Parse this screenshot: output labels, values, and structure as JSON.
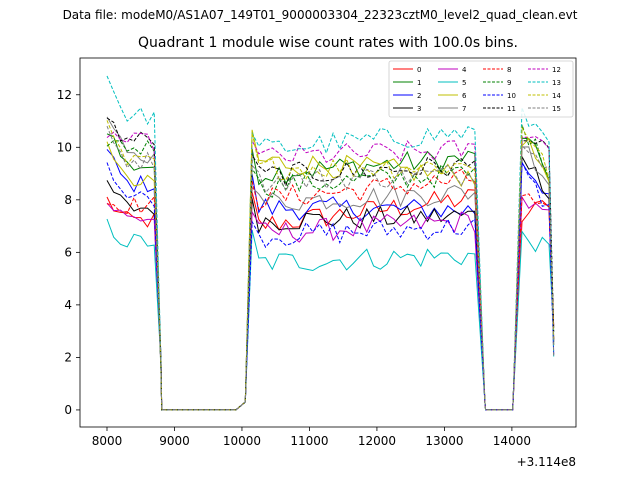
{
  "figure": {
    "suptitle": "Data file: modeM0/AS1A07_149T01_9000003304_22323cztM0_level2_quad_clean.evt",
    "title": "Quadrant 1 module wise count rates with 100.0s bins."
  },
  "chart_data": {
    "type": "line",
    "title": "Quadrant 1 module wise count rates with 100.0s bins.",
    "x_offset_label": "+3.114e8",
    "xlim": [
      7600,
      14950
    ],
    "ylim": [
      -0.65,
      13.4
    ],
    "xticks": [
      8000,
      9000,
      10000,
      11000,
      12000,
      13000,
      14000
    ],
    "yticks": [
      0,
      2,
      4,
      6,
      8,
      10,
      12
    ],
    "grid": false,
    "legend": {
      "placement": "upper-right",
      "columns": 4
    },
    "series": [
      {
        "name": "0",
        "color": "#ff0000",
        "dash": "solid",
        "base": [
          8.0,
          7.2,
          7.0,
          8.1
        ],
        "seg3": [
          7.3,
          8.0
        ]
      },
      {
        "name": "1",
        "color": "#008000",
        "dash": "solid",
        "base": [
          10.8,
          9.3,
          9.0,
          9.6
        ],
        "seg3": [
          10.5,
          9.0
        ]
      },
      {
        "name": "2",
        "color": "#0000ff",
        "dash": "solid",
        "base": [
          9.8,
          8.6,
          7.7,
          7.6
        ],
        "seg3": [
          9.5,
          8.2
        ]
      },
      {
        "name": "3",
        "color": "#000000",
        "dash": "solid",
        "base": [
          8.6,
          7.7,
          7.2,
          7.4
        ],
        "seg3": [
          9.8,
          8.3
        ]
      },
      {
        "name": "4",
        "color": "#bf00bf",
        "dash": "solid",
        "base": [
          7.9,
          7.3,
          6.7,
          7.2
        ],
        "seg3": [
          8.0,
          7.3
        ]
      },
      {
        "name": "5",
        "color": "#00bfbf",
        "dash": "solid",
        "base": [
          7.0,
          6.4,
          5.6,
          5.9
        ],
        "seg3": [
          6.6,
          6.1
        ]
      },
      {
        "name": "6",
        "color": "#bfbf00",
        "dash": "solid",
        "base": [
          10.4,
          8.6,
          9.5,
          8.9
        ],
        "seg3": [
          10.3,
          9.0
        ]
      },
      {
        "name": "7",
        "color": "#808080",
        "dash": "solid",
        "base": [
          11.2,
          9.6,
          7.9,
          8.3
        ],
        "seg3": [
          10.2,
          8.7
        ]
      },
      {
        "name": "8",
        "color": "#ff0000",
        "dash": "dashed",
        "base": [
          7.9,
          7.8,
          8.0,
          8.8
        ],
        "seg3": [
          8.2,
          7.4
        ]
      },
      {
        "name": "9",
        "color": "#008000",
        "dash": "dashed",
        "base": [
          10.3,
          10.0,
          8.5,
          9.0
        ],
        "seg3": [
          10.8,
          9.2
        ]
      },
      {
        "name": "10",
        "color": "#0000ff",
        "dash": "dashed",
        "base": [
          9.5,
          8.1,
          6.6,
          7.0
        ],
        "seg3": [
          9.2,
          7.6
        ]
      },
      {
        "name": "11",
        "color": "#000000",
        "dash": "dashed",
        "base": [
          11.0,
          10.3,
          8.9,
          9.3
        ],
        "seg3": [
          10.6,
          9.7
        ]
      },
      {
        "name": "12",
        "color": "#bf00bf",
        "dash": "dashed",
        "base": [
          10.6,
          10.2,
          9.6,
          9.9
        ],
        "seg3": [
          10.7,
          10.0
        ]
      },
      {
        "name": "13",
        "color": "#00bfbf",
        "dash": "dashed",
        "base": [
          12.7,
          11.2,
          9.9,
          10.6
        ],
        "seg3": [
          11.2,
          10.4
        ]
      },
      {
        "name": "14",
        "color": "#bfbf00",
        "dash": "dashed",
        "base": [
          10.7,
          9.4,
          9.2,
          9.3
        ],
        "seg3": [
          10.9,
          9.0
        ]
      },
      {
        "name": "15",
        "color": "#808080",
        "dash": "dashed",
        "base": [
          10.5,
          9.5,
          8.7,
          9.0
        ],
        "seg3": [
          10.4,
          9.1
        ]
      }
    ]
  }
}
